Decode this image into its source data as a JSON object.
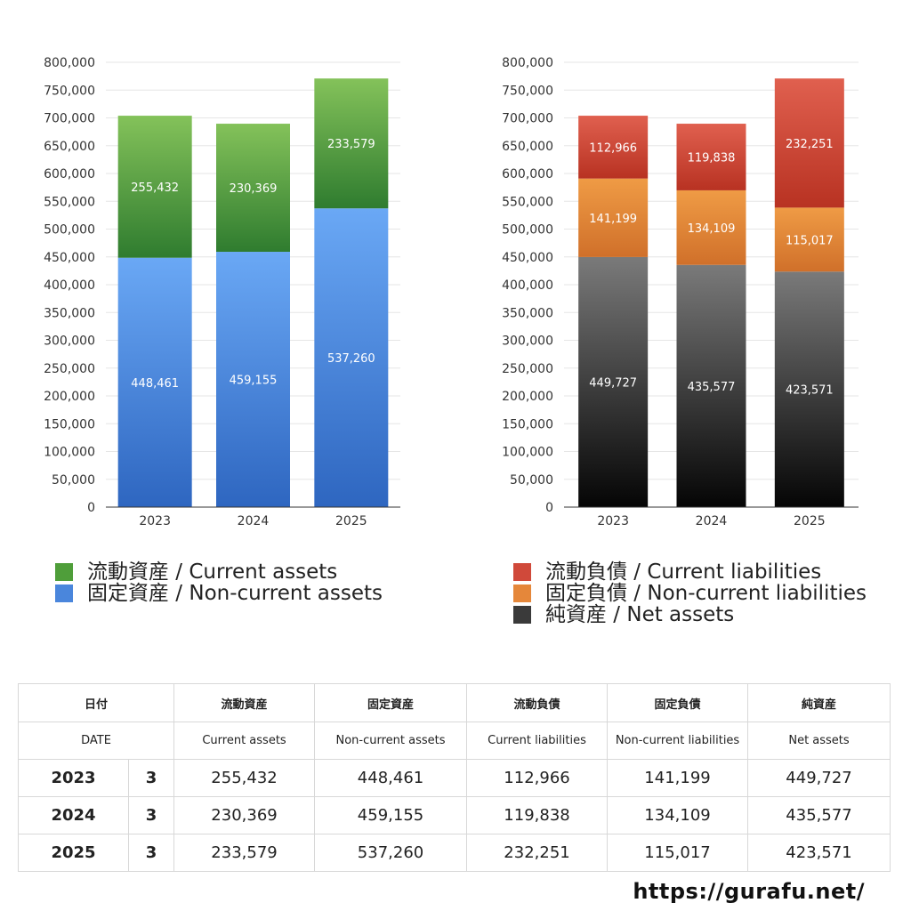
{
  "charts": [
    {
      "id": "assets",
      "categories": [
        "2023",
        "2024",
        "2025"
      ],
      "ylim": [
        0,
        800000
      ],
      "yticks": [
        0,
        50000,
        100000,
        150000,
        200000,
        250000,
        300000,
        350000,
        400000,
        450000,
        500000,
        550000,
        600000,
        650000,
        700000,
        750000,
        800000
      ],
      "ytick_labels": [
        "0",
        "50,000",
        "100,000",
        "150,000",
        "200,000",
        "250,000",
        "300,000",
        "350,000",
        "400,000",
        "450,000",
        "500,000",
        "550,000",
        "600,000",
        "650,000",
        "700,000",
        "750,000",
        "800,000"
      ],
      "series": [
        {
          "name": "固定資産 / Non-current assets",
          "values": [
            448461,
            459155,
            537260
          ],
          "labels": [
            "448,461",
            "459,155",
            "537,260"
          ],
          "color_top": "#6aa8f5",
          "color_bottom": "#2e66c0"
        },
        {
          "name": "流動資産 / Current assets",
          "values": [
            255432,
            230369,
            233579
          ],
          "labels": [
            "255,432",
            "230,369",
            "233,579"
          ],
          "color_top": "#84c25a",
          "color_bottom": "#2f7c2f"
        }
      ]
    },
    {
      "id": "liabilities",
      "categories": [
        "2023",
        "2024",
        "2025"
      ],
      "ylim": [
        0,
        800000
      ],
      "yticks": [
        0,
        50000,
        100000,
        150000,
        200000,
        250000,
        300000,
        350000,
        400000,
        450000,
        500000,
        550000,
        600000,
        650000,
        700000,
        750000,
        800000
      ],
      "ytick_labels": [
        "0",
        "50,000",
        "100,000",
        "150,000",
        "200,000",
        "250,000",
        "300,000",
        "350,000",
        "400,000",
        "450,000",
        "500,000",
        "550,000",
        "600,000",
        "650,000",
        "700,000",
        "750,000",
        "800,000"
      ],
      "series": [
        {
          "name": "純資産 / Net assets",
          "values": [
            449727,
            435577,
            423571
          ],
          "labels": [
            "449,727",
            "435,577",
            "423,571"
          ],
          "color_top": "#7a7a7a",
          "color_bottom": "#050505"
        },
        {
          "name": "固定負債 / Non-current liabilities",
          "values": [
            141199,
            134109,
            115017
          ],
          "labels": [
            "141,199",
            "134,109",
            "115,017"
          ],
          "color_top": "#ef9b45",
          "color_bottom": "#d0702a"
        },
        {
          "name": "流動負債 / Current liabilities",
          "values": [
            112966,
            119838,
            232251
          ],
          "labels": [
            "112,966",
            "119,838",
            "232,251"
          ],
          "color_top": "#e0604f",
          "color_bottom": "#b83222"
        }
      ]
    }
  ],
  "legend_left": [
    {
      "label": "流動資産 / Current assets",
      "color": "#4f9e3a"
    },
    {
      "label": "固定資産 / Non-current assets",
      "color": "#4a86dc"
    }
  ],
  "legend_right": [
    {
      "label": "流動負債 / Current liabilities",
      "color": "#d0493a"
    },
    {
      "label": "固定負債 / Non-current liabilities",
      "color": "#e5873a"
    },
    {
      "label": "純資産 / Net assets",
      "color": "#3a3a3a"
    }
  ],
  "table": {
    "headers_jp": [
      "日付",
      "",
      "流動資産",
      "固定資産",
      "流動負債",
      "固定負債",
      "純資産"
    ],
    "headers_en": [
      "DATE",
      "",
      "Current assets",
      "Non-current assets",
      "Current liabilities",
      "Non-current liabilities",
      "Net assets"
    ],
    "rows": [
      {
        "year": "2023",
        "month": "3",
        "cells": [
          "255,432",
          "448,461",
          "112,966",
          "141,199",
          "449,727"
        ]
      },
      {
        "year": "2024",
        "month": "3",
        "cells": [
          "230,369",
          "459,155",
          "119,838",
          "134,109",
          "435,577"
        ]
      },
      {
        "year": "2025",
        "month": "3",
        "cells": [
          "233,579",
          "537,260",
          "232,251",
          "115,017",
          "423,571"
        ]
      }
    ]
  },
  "url": "https://gurafu.net/",
  "chart_data": [
    {
      "type": "bar",
      "stacked": true,
      "categories": [
        "2023",
        "2024",
        "2025"
      ],
      "series": [
        {
          "name": "流動資産 / Current assets",
          "values": [
            255432,
            230369,
            233579
          ]
        },
        {
          "name": "固定資産 / Non-current assets",
          "values": [
            448461,
            459155,
            537260
          ]
        }
      ],
      "ylim": [
        0,
        800000
      ],
      "legend": "bottom",
      "grid": true
    },
    {
      "type": "bar",
      "stacked": true,
      "categories": [
        "2023",
        "2024",
        "2025"
      ],
      "series": [
        {
          "name": "流動負債 / Current liabilities",
          "values": [
            112966,
            119838,
            232251
          ]
        },
        {
          "name": "固定負債 / Non-current liabilities",
          "values": [
            141199,
            134109,
            115017
          ]
        },
        {
          "name": "純資産 / Net assets",
          "values": [
            449727,
            435577,
            423571
          ]
        }
      ],
      "ylim": [
        0,
        800000
      ],
      "legend": "bottom",
      "grid": true
    }
  ]
}
